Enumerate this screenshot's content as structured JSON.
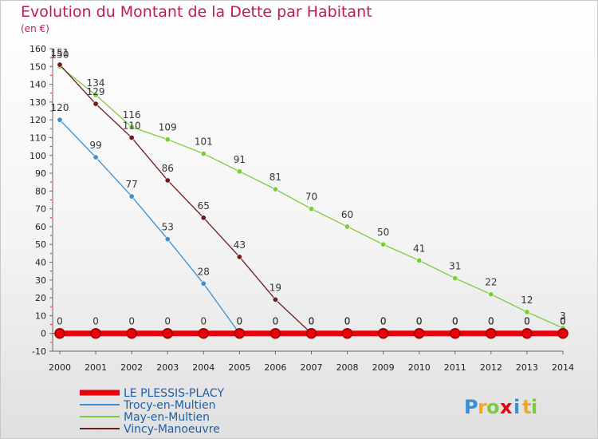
{
  "title": "Evolution du Montant de la Dette par Habitant",
  "unit": "(en €)",
  "chart_data": {
    "type": "line",
    "title": "Evolution du Montant de la Dette par Habitant",
    "ylabel": "(en €)",
    "x": [
      "2000",
      "2001",
      "2002",
      "2003",
      "2004",
      "2005",
      "2006",
      "2007",
      "2008",
      "2009",
      "2010",
      "2011",
      "2012",
      "2013",
      "2014"
    ],
    "ylim": [
      -10,
      160
    ],
    "yticks": [
      -10,
      0,
      10,
      20,
      30,
      40,
      50,
      60,
      70,
      80,
      90,
      100,
      110,
      120,
      130,
      140,
      150,
      160
    ],
    "grid": false,
    "legend_position": "bottom-left",
    "series": [
      {
        "name": "LE PLESSIS-PLACY",
        "color": "#e8000a",
        "values": [
          0,
          0,
          0,
          0,
          0,
          0,
          0,
          0,
          0,
          0,
          0,
          0,
          0,
          0,
          0
        ]
      },
      {
        "name": "Trocy-en-Multien",
        "color": "#3a8fd6",
        "values": [
          120,
          99,
          77,
          53,
          28,
          0,
          0,
          0,
          0,
          0,
          0,
          0,
          0,
          0,
          0
        ]
      },
      {
        "name": "May-en-Multien",
        "color": "#7ccc3c",
        "values": [
          150,
          134,
          116,
          109,
          101,
          91,
          81,
          70,
          60,
          50,
          41,
          31,
          22,
          12,
          3
        ]
      },
      {
        "name": "Vincy-Manoeuvre",
        "color": "#6b1c1c",
        "values": [
          151,
          129,
          110,
          86,
          65,
          43,
          19,
          0,
          0,
          0,
          0,
          0,
          0,
          0,
          0
        ]
      }
    ]
  },
  "brand": {
    "letters": [
      "P",
      "r",
      "o",
      "x",
      "i",
      "t",
      "i"
    ],
    "colors": [
      "#3a8fd6",
      "#f5a623",
      "#7ccc3c",
      "#e8000a",
      "#3a8fd6",
      "#f5a623",
      "#7ccc3c"
    ]
  }
}
